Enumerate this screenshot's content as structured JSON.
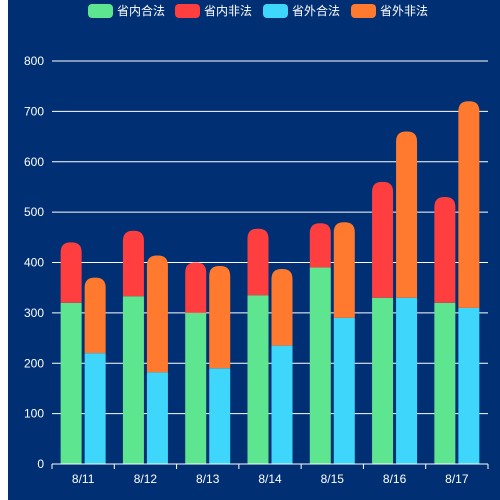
{
  "chart_data": {
    "type": "bar",
    "stacked": true,
    "title": "",
    "xlabel": "",
    "ylabel": "",
    "categories": [
      "8/11",
      "8/12",
      "8/13",
      "8/14",
      "8/15",
      "8/16",
      "8/17"
    ],
    "ylim": [
      0,
      800
    ],
    "yticks": [
      0,
      100,
      200,
      300,
      400,
      500,
      600,
      700,
      800
    ],
    "grid": true,
    "legend_position": "top-center",
    "stacks": [
      {
        "stack": "省内",
        "series": [
          0,
          1
        ]
      },
      {
        "stack": "省外",
        "series": [
          2,
          3
        ]
      }
    ],
    "series": [
      {
        "name": "省内合法",
        "stack": "省内",
        "color": "#5ee58f",
        "values": [
          320,
          333,
          300,
          335,
          390,
          330,
          320
        ]
      },
      {
        "name": "省内非法",
        "stack": "省内",
        "color": "#ff3f3f",
        "values": [
          120,
          130,
          100,
          132,
          88,
          230,
          210
        ]
      },
      {
        "name": "省外合法",
        "stack": "省外",
        "color": "#3ed6fb",
        "values": [
          220,
          182,
          190,
          235,
          290,
          330,
          310
        ]
      },
      {
        "name": "省外非法",
        "stack": "省外",
        "color": "#ff7a2e",
        "values": [
          150,
          232,
          203,
          152,
          190,
          330,
          410
        ]
      }
    ],
    "colors": {
      "background": "#012f73",
      "grid": "#ffffff",
      "text": "#ffffff"
    }
  }
}
